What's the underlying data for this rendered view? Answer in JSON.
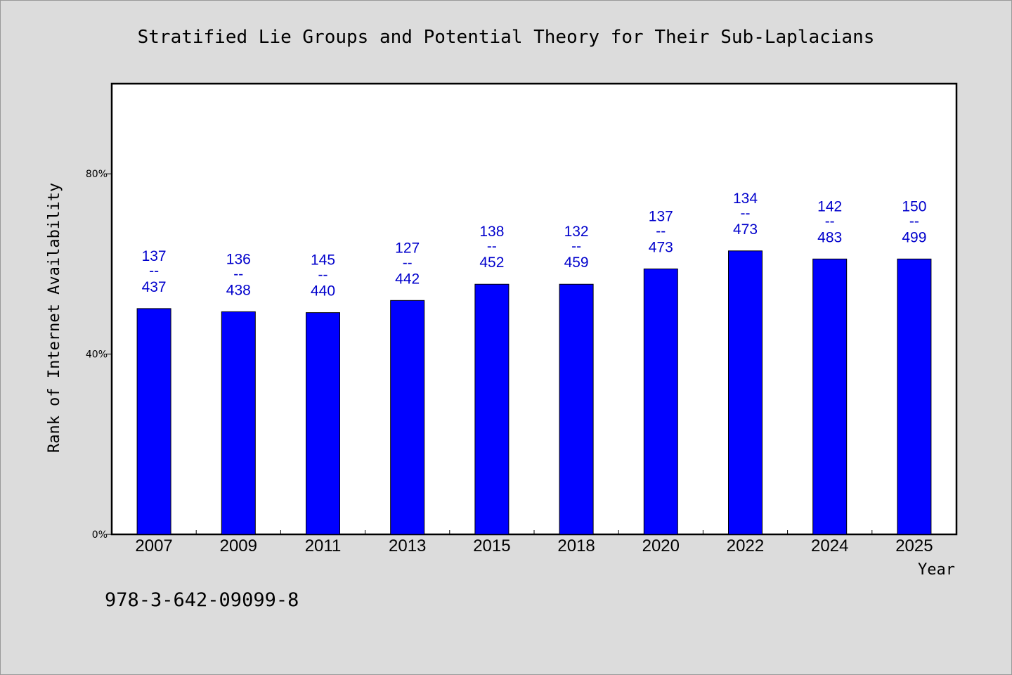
{
  "chart_data": {
    "type": "bar",
    "title": "Stratified Lie Groups and Potential Theory for Their Sub-Laplacians",
    "xlabel": "Year",
    "ylabel": "Rank of Internet Availability",
    "ylim": [
      0,
      100
    ],
    "yticks": [
      {
        "value": 0,
        "label": "0%"
      },
      {
        "value": 40,
        "label": "40%"
      },
      {
        "value": 80,
        "label": "80%"
      }
    ],
    "categories": [
      "2007",
      "2009",
      "2011",
      "2013",
      "2015",
      "2018",
      "2020",
      "2022",
      "2024",
      "2025"
    ],
    "values": [
      50.1,
      49.4,
      49.2,
      51.9,
      55.5,
      55.5,
      58.9,
      62.9,
      61.1,
      61.1
    ],
    "labels": [
      {
        "top": "137",
        "sep": "--",
        "bottom": "437"
      },
      {
        "top": "136",
        "sep": "--",
        "bottom": "438"
      },
      {
        "top": "145",
        "sep": "--",
        "bottom": "440"
      },
      {
        "top": "127",
        "sep": "--",
        "bottom": "442"
      },
      {
        "top": "138",
        "sep": "--",
        "bottom": "452"
      },
      {
        "top": "132",
        "sep": "--",
        "bottom": "459"
      },
      {
        "top": "137",
        "sep": "--",
        "bottom": "473"
      },
      {
        "top": "134",
        "sep": "--",
        "bottom": "473"
      },
      {
        "top": "142",
        "sep": "--",
        "bottom": "483"
      },
      {
        "top": "150",
        "sep": "--",
        "bottom": "499"
      }
    ],
    "bar_color": "#0000ff",
    "label_color": "#0000cc",
    "grid": false
  },
  "footnote": "978-3-642-09099-8"
}
